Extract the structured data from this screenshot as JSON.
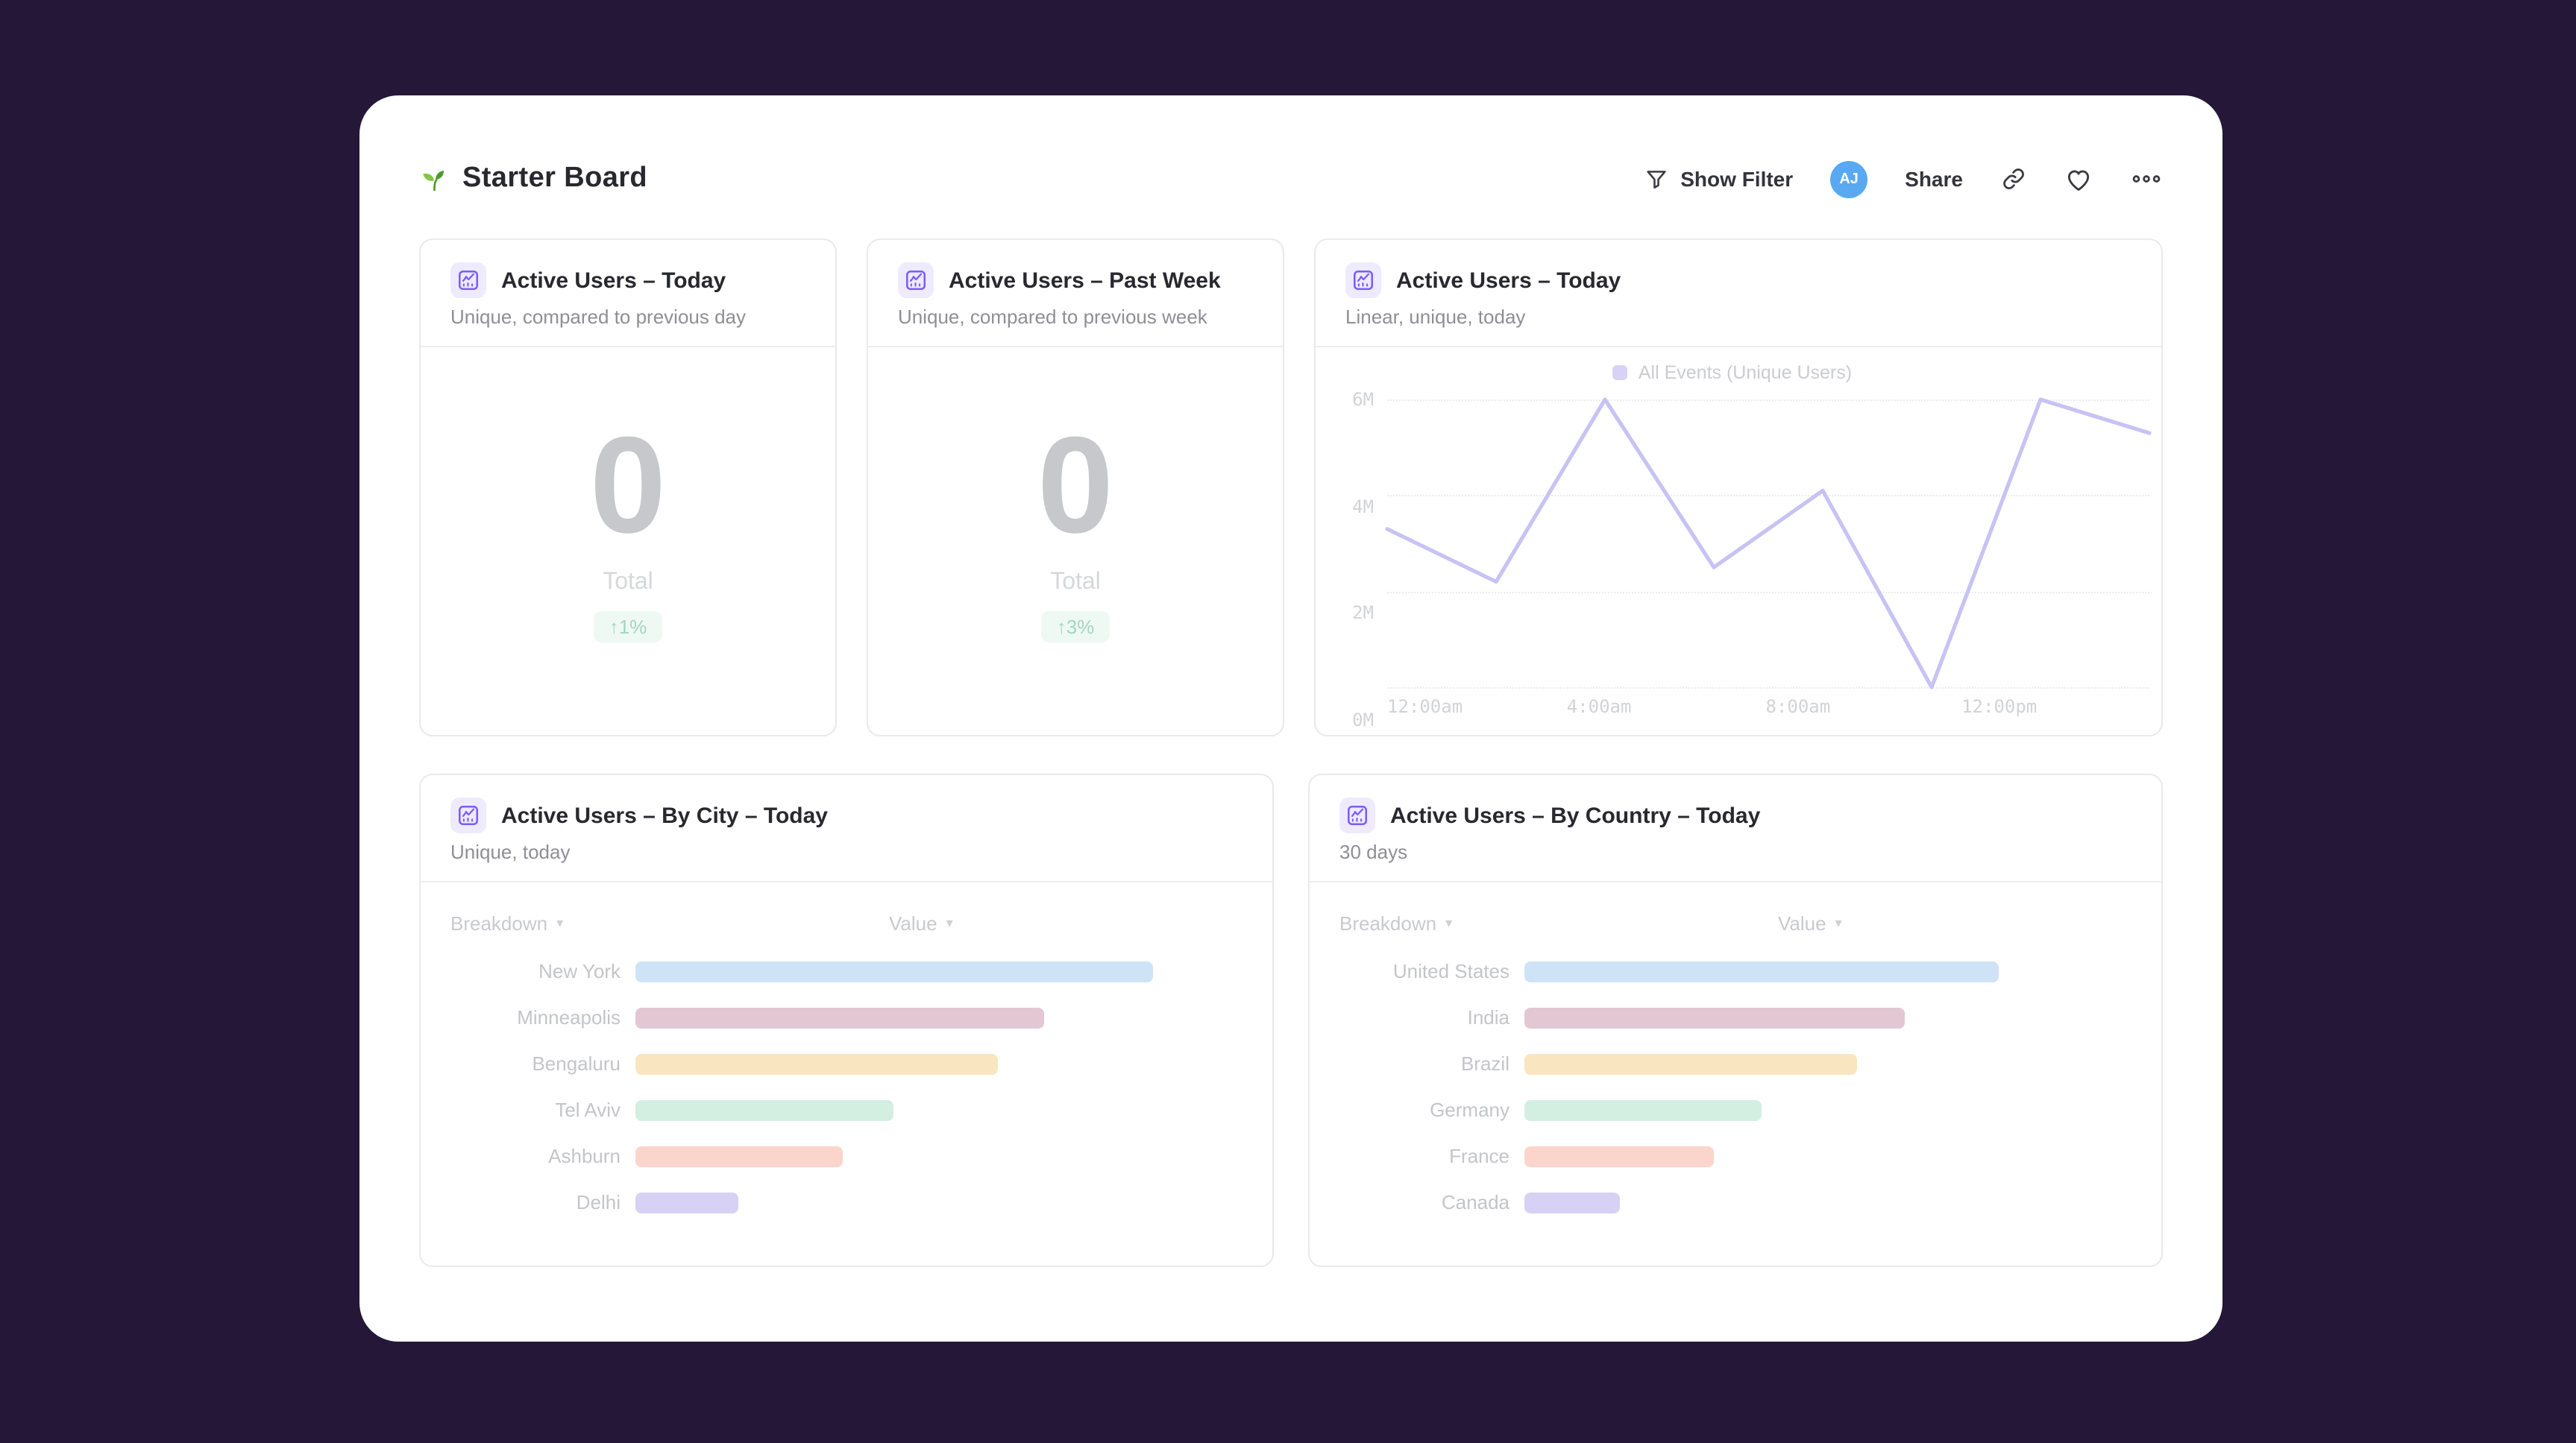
{
  "header": {
    "title": "Starter Board",
    "toolbar": {
      "show_filter_label": "Show Filter",
      "avatar_initials": "AJ",
      "share_label": "Share",
      "icons": [
        "filter-icon",
        "link-icon",
        "heart-icon",
        "more-icon"
      ]
    }
  },
  "cards": {
    "active_users_today": {
      "title": "Active Users – Today",
      "subtitle": "Unique, compared to previous day",
      "value": "0",
      "value_label": "Total",
      "delta": "↑1%"
    },
    "active_users_past_week": {
      "title": "Active Users – Past Week",
      "subtitle": "Unique, compared to previous week",
      "value": "0",
      "value_label": "Total",
      "delta": "↑3%"
    },
    "active_users_today_chart": {
      "title": "Active Users – Today",
      "subtitle": "Linear, unique, today"
    },
    "active_users_by_city": {
      "title": "Active Users – By City – Today",
      "subtitle": "Unique, today",
      "col_breakdown": "Breakdown",
      "col_value": "Value"
    },
    "active_users_by_country": {
      "title": "Active Users – By Country – Today",
      "subtitle": "30 days",
      "col_breakdown": "Breakdown",
      "col_value": "Value"
    }
  },
  "chart_data": [
    {
      "id": "active-users-today-line",
      "type": "line",
      "title": "Active Users – Today",
      "legend": [
        "All Events (Unique Users)"
      ],
      "legend_position": "top-center",
      "y_ticks": [
        "0M",
        "2M",
        "4M",
        "6M"
      ],
      "ylim": [
        0,
        6
      ],
      "x_ticks": [
        "12:00am",
        "4:00am",
        "8:00am",
        "12:00pm"
      ],
      "x_tick_pos": [
        0.01,
        0.278,
        0.539,
        0.803
      ],
      "values_millions": [
        3.3,
        2.2,
        6.0,
        2.5,
        4.1,
        0.0,
        6.0,
        5.3
      ],
      "grid": "horizontal-dotted",
      "line_color": "#c8c2f4"
    },
    {
      "id": "active-users-by-city",
      "type": "bar",
      "orientation": "horizontal",
      "categories": [
        "New York",
        "Minneapolis",
        "Bengaluru",
        "Tel Aviv",
        "Ashburn",
        "Delhi"
      ],
      "values_relative_pct": [
        100,
        79,
        70,
        50,
        40,
        20
      ],
      "bar_colors": [
        "#cfe3f6",
        "#e3c7d2",
        "#f9e6c0",
        "#d3efe2",
        "#fbd5cb",
        "#d6d1f5"
      ],
      "track_fill_pct": 86
    },
    {
      "id": "active-users-by-country",
      "type": "bar",
      "orientation": "horizontal",
      "categories": [
        "United States",
        "India",
        "Brazil",
        "Germany",
        "France",
        "Canada"
      ],
      "values_relative_pct": [
        100,
        80,
        70,
        50,
        40,
        20
      ],
      "bar_colors": [
        "#cfe3f6",
        "#e3c7d2",
        "#f9e6c0",
        "#d3efe2",
        "#fbd5cb",
        "#d6d1f5"
      ],
      "track_fill_pct": 79
    }
  ],
  "colors": {
    "page_background": "#241738",
    "panel_background": "#ffffff",
    "accent_purple": "#7c5cfa",
    "avatar_blue": "#58a9f1",
    "delta_green": "#a3d5bf"
  }
}
